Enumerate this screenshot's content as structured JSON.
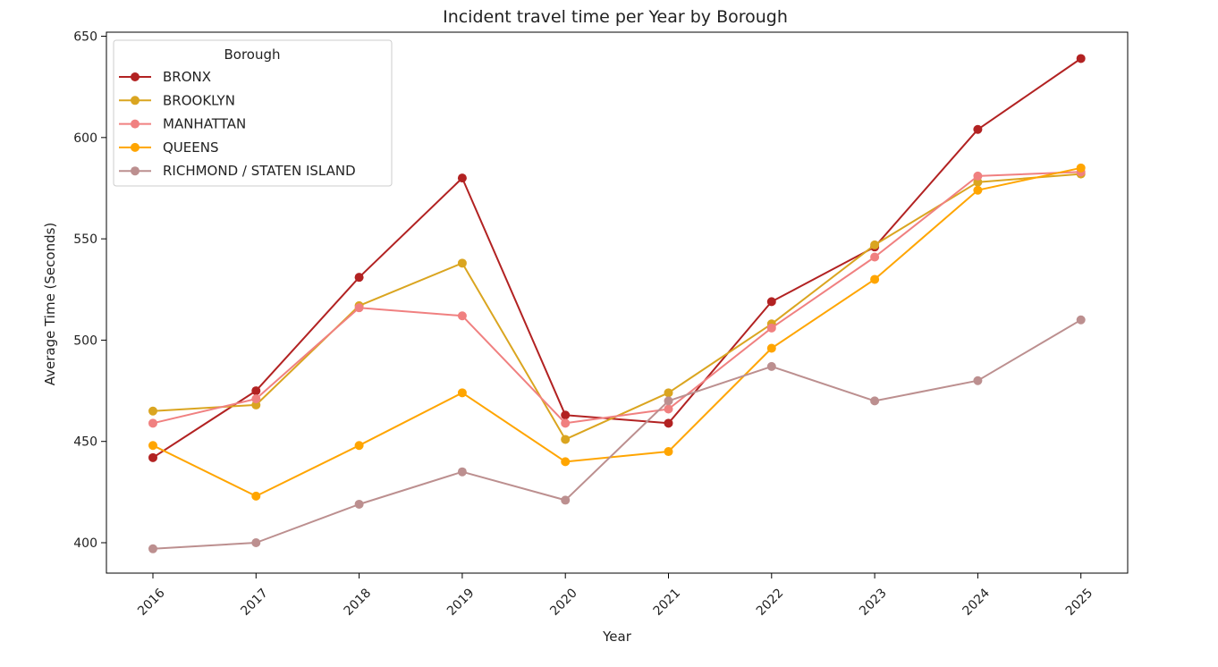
{
  "chart_data": {
    "type": "line",
    "title": "Incident travel time per Year by Borough",
    "xlabel": "Year",
    "ylabel": "Average Time (Seconds)",
    "categories": [
      "2016",
      "2017",
      "2018",
      "2019",
      "2020",
      "2021",
      "2022",
      "2023",
      "2024",
      "2025"
    ],
    "ylim": [
      385,
      652
    ],
    "yticks": [
      400,
      450,
      500,
      550,
      600,
      650
    ],
    "grid": false,
    "legend": {
      "title": "Borough",
      "placement": "top-left"
    },
    "series": [
      {
        "name": "BRONX",
        "color": "#b22222",
        "values": [
          442,
          475,
          531,
          580,
          463,
          459,
          519,
          546,
          604,
          639
        ]
      },
      {
        "name": "BROOKLYN",
        "color": "#daa520",
        "values": [
          465,
          468,
          517,
          538,
          451,
          474,
          508,
          547,
          578,
          582
        ]
      },
      {
        "name": "MANHATTAN",
        "color": "#f08080",
        "values": [
          459,
          471,
          516,
          512,
          459,
          466,
          506,
          541,
          581,
          583
        ]
      },
      {
        "name": "QUEENS",
        "color": "#ffa500",
        "values": [
          448,
          423,
          448,
          474,
          440,
          445,
          496,
          530,
          574,
          585
        ]
      },
      {
        "name": "RICHMOND / STATEN ISLAND",
        "color": "#bc8f8f",
        "values": [
          397,
          400,
          419,
          435,
          421,
          470,
          487,
          470,
          480,
          510
        ]
      }
    ]
  }
}
